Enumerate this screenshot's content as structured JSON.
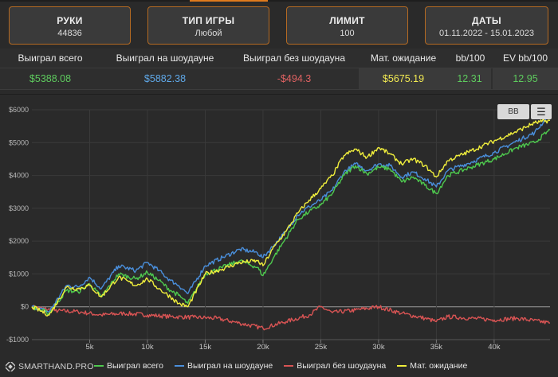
{
  "filters": [
    {
      "label": "РУКИ",
      "value": "44836"
    },
    {
      "label": "ТИП ИГРЫ",
      "value": "Любой"
    },
    {
      "label": "ЛИМИТ",
      "value": "100"
    },
    {
      "label": "ДАТЫ",
      "value": "01.11.2022 - 15.01.2023"
    }
  ],
  "stats": {
    "headers": [
      "Выиграл всего",
      "Выиграл на шоудауне",
      "Выиграл без шоудауна",
      "Мат. ожидание",
      "bb/100",
      "EV bb/100"
    ],
    "values": [
      "$5388.08",
      "$5882.38",
      "-$494.3",
      "$5675.19",
      "12.31",
      "12.95"
    ],
    "colors": [
      "#5ecb5e",
      "#5fa8e8",
      "#e06262",
      "#f2ea52",
      "#5ecb5e",
      "#5ecb5e"
    ]
  },
  "buttons": {
    "bb_label": "BB",
    "menu_icon": "menu-icon"
  },
  "brand": "SMARTHAND.PRO",
  "chart_data": {
    "type": "line",
    "x_ticks": [
      5000,
      10000,
      15000,
      20000,
      25000,
      30000,
      35000,
      40000
    ],
    "x_tick_labels": [
      "5k",
      "10k",
      "15k",
      "20k",
      "25k",
      "30k",
      "35k",
      "40k"
    ],
    "xlim": [
      0,
      44836
    ],
    "ylim": [
      -1000,
      6000
    ],
    "y_ticks": [
      -1000,
      0,
      1000,
      2000,
      3000,
      4000,
      5000,
      6000
    ],
    "y_tick_labels": [
      "-$1000",
      "$0",
      "$1000",
      "$2000",
      "$3000",
      "$4000",
      "$5000",
      "$6000"
    ],
    "grid": true,
    "legend_position": "bottom",
    "series": [
      {
        "name": "Выиграл всего",
        "color": "#4ec94e",
        "x": [
          0,
          1500,
          3000,
          4000,
          5000,
          6000,
          7500,
          9000,
          10000,
          11000,
          12000,
          12700,
          13500,
          15000,
          16500,
          18000,
          19500,
          20000,
          21000,
          22000,
          23000,
          24000,
          25000,
          26000,
          27000,
          28000,
          29000,
          30000,
          31000,
          32000,
          33000,
          34000,
          35000,
          36000,
          38000,
          40000,
          42000,
          43500,
          44836
        ],
        "y": [
          0,
          -200,
          500,
          450,
          700,
          300,
          1000,
          850,
          1050,
          800,
          500,
          350,
          100,
          1000,
          1200,
          1400,
          1200,
          950,
          1550,
          2100,
          2650,
          2900,
          3100,
          3450,
          4000,
          4300,
          4050,
          4250,
          4200,
          3800,
          3950,
          3700,
          3450,
          4000,
          4250,
          4500,
          4850,
          5000,
          5388
        ]
      },
      {
        "name": "Выиграл на шоудауне",
        "color": "#4a8fdc",
        "x": [
          0,
          1500,
          3000,
          4000,
          5000,
          6000,
          7500,
          9000,
          10000,
          11000,
          12000,
          12700,
          13500,
          15000,
          16500,
          18000,
          19500,
          20000,
          21000,
          22000,
          23000,
          24000,
          25000,
          26000,
          27000,
          28000,
          29000,
          30000,
          31000,
          32000,
          33000,
          34000,
          35000,
          36000,
          38000,
          40000,
          42000,
          43500,
          44836
        ],
        "y": [
          0,
          -150,
          650,
          600,
          900,
          550,
          1250,
          1100,
          1350,
          1100,
          800,
          650,
          400,
          1250,
          1500,
          1750,
          1650,
          1500,
          1900,
          2300,
          2800,
          3050,
          3250,
          3550,
          4100,
          4350,
          4150,
          4350,
          4300,
          3950,
          4100,
          3900,
          3650,
          4150,
          4400,
          4700,
          5050,
          5300,
          5882
        ]
      },
      {
        "name": "Выиграл без шоудауна",
        "color": "#d95454",
        "x": [
          0,
          2000,
          4000,
          6000,
          8000,
          10000,
          12000,
          14000,
          16000,
          18000,
          20000,
          22000,
          24000,
          25000,
          26000,
          28000,
          30000,
          32000,
          34000,
          35000,
          36000,
          38000,
          40000,
          42000,
          44836
        ],
        "y": [
          0,
          -120,
          -150,
          -250,
          -200,
          -250,
          -300,
          -320,
          -350,
          -500,
          -650,
          -450,
          -250,
          0,
          -180,
          -100,
          0,
          -200,
          -350,
          -450,
          -300,
          -350,
          -400,
          -350,
          -494
        ]
      },
      {
        "name": "Мат. ожидание",
        "color": "#f0ee3c",
        "x": [
          0,
          1500,
          3000,
          4000,
          5000,
          6000,
          7500,
          9000,
          10000,
          11000,
          12000,
          12700,
          13500,
          15000,
          16500,
          18000,
          19500,
          20000,
          21000,
          22000,
          23000,
          24000,
          25000,
          26000,
          27000,
          28000,
          29000,
          30000,
          31000,
          32000,
          33000,
          34000,
          35000,
          36000,
          38000,
          40000,
          42000,
          43500,
          44836
        ],
        "y": [
          0,
          -250,
          600,
          550,
          650,
          300,
          900,
          650,
          850,
          550,
          300,
          100,
          0,
          1000,
          1150,
          1350,
          1400,
          1250,
          1850,
          2300,
          2850,
          3250,
          3600,
          4000,
          4600,
          4800,
          4550,
          4850,
          4650,
          4350,
          4500,
          4300,
          3950,
          4450,
          4750,
          5050,
          5350,
          5600,
          5675
        ]
      }
    ]
  }
}
